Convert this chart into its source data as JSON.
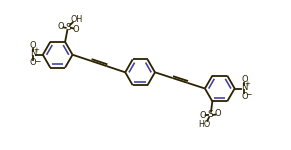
{
  "bg_color": "#ffffff",
  "bond_color": "#2a2200",
  "aromatic_color": "#4040a0",
  "figsize": [
    2.91,
    1.5
  ],
  "dpi": 100,
  "lw": 1.3,
  "R": 0.55,
  "xlim": [
    0,
    10.5
  ],
  "ylim": [
    0,
    5.5
  ]
}
